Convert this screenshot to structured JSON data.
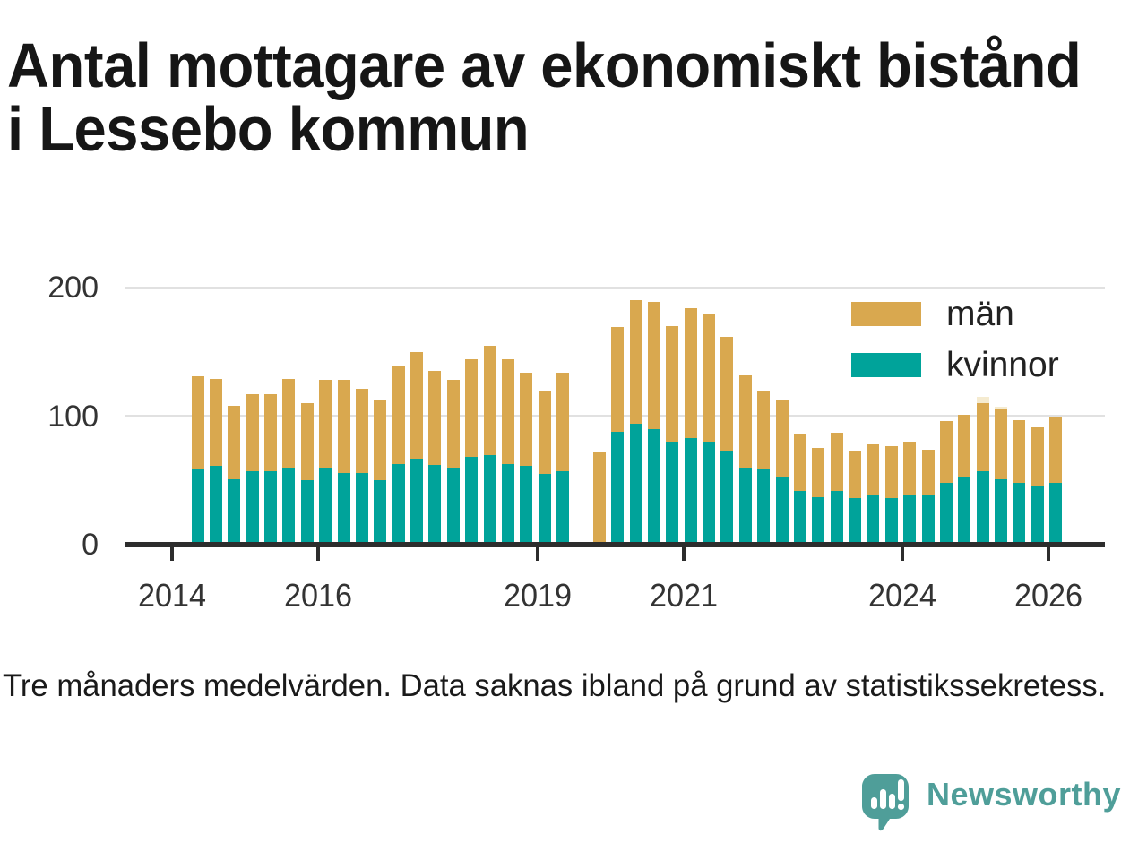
{
  "title": {
    "line1": "Antal mottagare av ekonomiskt bistånd",
    "line2": "i Lessebo kommun"
  },
  "footnote": "Tre månaders medelvärden. Data saknas ibland på grund av statistikssekretess.",
  "legend": {
    "items": [
      {
        "label": "män",
        "color": "#d9a84f"
      },
      {
        "label": "kvinnor",
        "color": "#00a39a"
      }
    ]
  },
  "logo": {
    "text": "Newsworthy",
    "color": "#4f9e99"
  },
  "colors": {
    "bar_man": "#d9a84f",
    "bar_kvinnor": "#00a39a",
    "pale_cap": "#f5ebd0",
    "gridline": "#e1e1e1",
    "axis": "#2d2d2d",
    "tick_text": "#333333",
    "title_text": "#161616",
    "logo": "#4f9e99"
  },
  "chart_data": {
    "type": "bar",
    "stacked": true,
    "title": "Antal mottagare av ekonomiskt bistånd i Lessebo kommun",
    "xlabel": "",
    "ylabel": "",
    "ylim": [
      0,
      200
    ],
    "y_ticks": [
      0,
      100,
      200
    ],
    "x_tick_years": [
      2014,
      2016,
      2019,
      2021,
      2024,
      2026
    ],
    "x_start_label": "2014 Q2",
    "x_interval": "quarter",
    "grid": "horizontal",
    "legend_position": "top-right",
    "series_names": [
      "kvinnor",
      "män"
    ],
    "missing_note": "null slot = data saknas (statistikssekretess)",
    "bars": [
      {
        "kvinnor": 59,
        "man": 72
      },
      {
        "kvinnor": 61,
        "man": 68
      },
      {
        "kvinnor": 51,
        "man": 57
      },
      {
        "kvinnor": 57,
        "man": 60
      },
      {
        "kvinnor": 57,
        "man": 60
      },
      {
        "kvinnor": 60,
        "man": 69
      },
      {
        "kvinnor": 50,
        "man": 60
      },
      {
        "kvinnor": 60,
        "man": 68
      },
      {
        "kvinnor": 56,
        "man": 72
      },
      {
        "kvinnor": 56,
        "man": 65
      },
      {
        "kvinnor": 50,
        "man": 62
      },
      {
        "kvinnor": 63,
        "man": 76
      },
      {
        "kvinnor": 67,
        "man": 83
      },
      {
        "kvinnor": 62,
        "man": 73
      },
      {
        "kvinnor": 60,
        "man": 68
      },
      {
        "kvinnor": 68,
        "man": 76
      },
      {
        "kvinnor": 70,
        "man": 85
      },
      {
        "kvinnor": 63,
        "man": 81
      },
      {
        "kvinnor": 61,
        "man": 73
      },
      {
        "kvinnor": 55,
        "man": 64
      },
      {
        "kvinnor": 57,
        "man": 77
      },
      null,
      {
        "kvinnor": null,
        "man": 72
      },
      {
        "kvinnor": 88,
        "man": 81
      },
      {
        "kvinnor": 94,
        "man": 96
      },
      {
        "kvinnor": 90,
        "man": 99
      },
      {
        "kvinnor": 80,
        "man": 90
      },
      {
        "kvinnor": 83,
        "man": 101
      },
      {
        "kvinnor": 80,
        "man": 99
      },
      {
        "kvinnor": 73,
        "man": 89
      },
      {
        "kvinnor": 60,
        "man": 72
      },
      {
        "kvinnor": 59,
        "man": 61
      },
      {
        "kvinnor": 53,
        "man": 59
      },
      {
        "kvinnor": 42,
        "man": 44
      },
      {
        "kvinnor": 37,
        "man": 38
      },
      {
        "kvinnor": 42,
        "man": 45
      },
      {
        "kvinnor": 36,
        "man": 37
      },
      {
        "kvinnor": 39,
        "man": 39
      },
      {
        "kvinnor": 36,
        "man": 41
      },
      {
        "kvinnor": 39,
        "man": 41
      },
      {
        "kvinnor": 38,
        "man": 36
      },
      {
        "kvinnor": 48,
        "man": 48
      },
      {
        "kvinnor": 52,
        "man": 49
      },
      {
        "kvinnor": 57,
        "man": 53,
        "pale_cap": 5
      },
      {
        "kvinnor": 51,
        "man": 54,
        "pale_cap": 2
      },
      {
        "kvinnor": 48,
        "man": 49
      },
      {
        "kvinnor": 45,
        "man": 46
      },
      {
        "kvinnor": 48,
        "man": 52
      }
    ]
  }
}
